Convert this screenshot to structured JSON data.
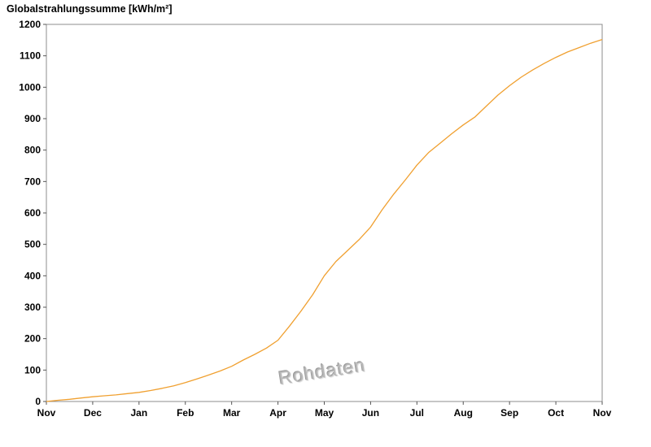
{
  "title": "Globalstrahlungssumme [kWh/m²]",
  "watermark": "Rohdaten",
  "chart_data": {
    "type": "line",
    "title": "Globalstrahlungssumme [kWh/m²]",
    "xlabel": "",
    "ylabel": "Globalstrahlungssumme [kWh/m²]",
    "x_tick_labels": [
      "Nov",
      "Dec",
      "Jan",
      "Feb",
      "Mar",
      "Apr",
      "May",
      "Jun",
      "Jul",
      "Aug",
      "Sep",
      "Oct",
      "Nov"
    ],
    "y_ticks": [
      0,
      100,
      200,
      300,
      400,
      500,
      600,
      700,
      800,
      900,
      1000,
      1100,
      1200
    ],
    "xlim": [
      0,
      12
    ],
    "ylim": [
      0,
      1200
    ],
    "grid": false,
    "legend": "none",
    "line_color": "#f0a030",
    "frame_color": "#8c8c8c",
    "tick_color": "#555555",
    "label_color": "#000000",
    "annotations": [
      "Rohdaten"
    ],
    "series": [
      {
        "name": "Globalstrahlungssumme",
        "x": [
          0,
          0.25,
          0.5,
          0.75,
          1,
          1.25,
          1.5,
          1.75,
          2,
          2.25,
          2.5,
          2.75,
          3,
          3.25,
          3.5,
          3.75,
          4,
          4.25,
          4.5,
          4.75,
          5,
          5.25,
          5.5,
          5.75,
          6,
          6.25,
          6.5,
          6.75,
          7,
          7.25,
          7.5,
          7.75,
          8,
          8.25,
          8.5,
          8.75,
          9,
          9.25,
          9.5,
          9.75,
          10,
          10.25,
          10.5,
          10.75,
          11,
          11.25,
          11.5,
          11.75,
          12
        ],
        "values": [
          0,
          4,
          7,
          11,
          15,
          18,
          21,
          25,
          29,
          35,
          42,
          50,
          60,
          72,
          84,
          97,
          112,
          132,
          150,
          170,
          195,
          240,
          288,
          340,
          400,
          445,
          480,
          515,
          555,
          610,
          660,
          705,
          752,
          792,
          822,
          852,
          880,
          905,
          940,
          975,
          1005,
          1032,
          1055,
          1076,
          1095,
          1112,
          1126,
          1140,
          1152
        ]
      }
    ]
  }
}
